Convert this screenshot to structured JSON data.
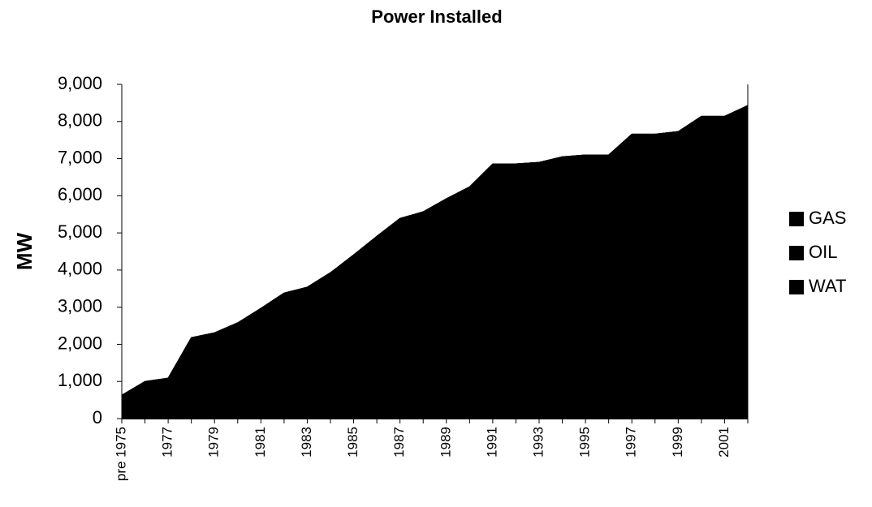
{
  "chart_data": {
    "type": "area",
    "stacked": true,
    "title": "Power Installed",
    "y_label": "MW",
    "categories": [
      "pre 1975",
      null,
      "1977",
      null,
      "1979",
      null,
      "1981",
      null,
      "1983",
      null,
      "1985",
      null,
      "1987",
      null,
      "1989",
      null,
      "1991",
      null,
      "1993",
      null,
      "1995",
      null,
      "1997",
      null,
      "1999",
      null,
      "2001",
      null
    ],
    "series": [
      {
        "name": "GAS",
        "color": "#000000",
        "values": [
          0,
          0,
          0,
          0,
          0,
          0,
          0,
          0,
          0,
          0,
          0,
          0,
          0,
          0,
          0,
          0,
          0,
          0,
          0,
          0,
          0,
          0,
          0,
          0,
          0,
          0,
          0,
          0
        ]
      },
      {
        "name": "OIL",
        "color": "#000000",
        "values": [
          0,
          0,
          0,
          0,
          0,
          0,
          0,
          0,
          0,
          0,
          0,
          0,
          0,
          0,
          0,
          0,
          0,
          0,
          0,
          0,
          0,
          0,
          0,
          0,
          0,
          0,
          0,
          0
        ]
      },
      {
        "name": "WAT",
        "color": "#000000",
        "values": [
          630,
          1000,
          1090,
          2180,
          2310,
          2580,
          2970,
          3380,
          3540,
          3930,
          4410,
          4910,
          5390,
          5570,
          5920,
          6240,
          6860,
          6860,
          6900,
          7050,
          7100,
          7100,
          7660,
          7660,
          7730,
          8140,
          8140,
          8430
        ]
      }
    ],
    "ylim": [
      0,
      9000
    ],
    "yticks": [
      0,
      {
        "value": 1000,
        "label": "1,000"
      },
      {
        "value": 2000,
        "label": "2,000"
      },
      {
        "value": 3000,
        "label": "3,000"
      },
      {
        "value": 4000,
        "label": "4,000"
      },
      {
        "value": 5000,
        "label": "5,000"
      },
      {
        "value": 6000,
        "label": "6,000"
      },
      {
        "value": 7000,
        "label": "7,000"
      },
      {
        "value": 8000,
        "label": "8,000"
      },
      {
        "value": 9000,
        "label": "9,000"
      }
    ],
    "legend": "right"
  }
}
